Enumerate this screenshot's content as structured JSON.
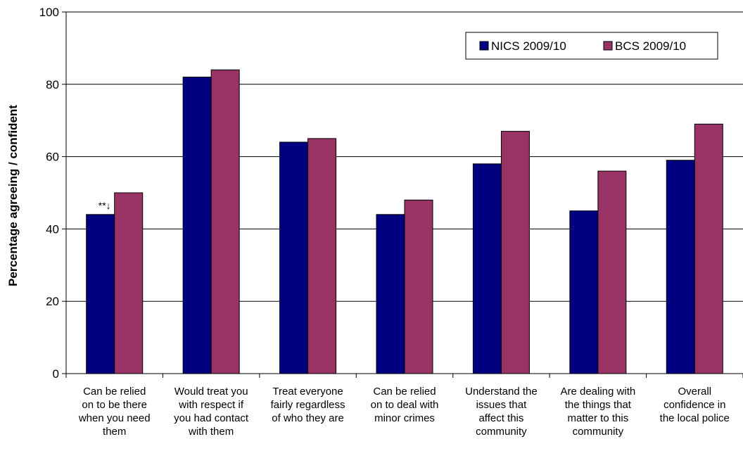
{
  "chart_data": {
    "type": "bar",
    "ylabel": "Percentage agreeing / confident",
    "ylim": [
      0,
      100
    ],
    "yticks": [
      0,
      20,
      40,
      60,
      80,
      100
    ],
    "grid": true,
    "legend_position": "top-right",
    "categories": [
      [
        "Can be relied",
        "on to be there",
        "when you need",
        "them"
      ],
      [
        "Would treat you",
        "with respect if",
        "you had contact",
        "with them"
      ],
      [
        "Treat everyone",
        "fairly regardless",
        "of who they are"
      ],
      [
        "Can be relied",
        "on to deal with",
        "minor crimes"
      ],
      [
        "Understand the",
        "issues that",
        "affect this",
        "community"
      ],
      [
        "Are dealing with",
        "the things that",
        "matter to this",
        "community"
      ],
      [
        "Overall",
        "confidence in",
        "the local police"
      ]
    ],
    "series": [
      {
        "name": "NICS 2009/10",
        "color": "#000080",
        "values": [
          44,
          82,
          64,
          44,
          58,
          45,
          59
        ]
      },
      {
        "name": "BCS 2009/10",
        "color": "#993366",
        "values": [
          50,
          84,
          65,
          48,
          67,
          56,
          69
        ]
      }
    ],
    "annotations": [
      {
        "category_index": 0,
        "series_index": 0,
        "text": "**↓"
      }
    ]
  }
}
